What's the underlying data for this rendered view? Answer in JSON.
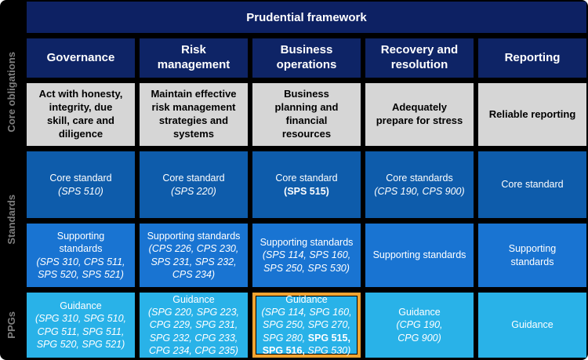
{
  "title": "Prudential framework",
  "colors": {
    "background": "#000000",
    "banner_navy": "#0d2163",
    "column_header_navy": "#0e2466",
    "core_obligation_gray": "#d6d6d6",
    "core_standard_blue": "#0e5cab",
    "supporting_standard_blue": "#1974d2",
    "guidance_cyan": "#29b2e8",
    "highlight_orange": "#f0a432",
    "rail_label_gray": "#7f7f7f"
  },
  "row_groups": {
    "core_obligations": "Core obligations",
    "standards": "Standards",
    "ppgs": "PPGs"
  },
  "columns": [
    {
      "lines": [
        "Governance"
      ]
    },
    {
      "lines": [
        "Risk",
        "management"
      ]
    },
    {
      "lines": [
        "Business",
        "operations"
      ]
    },
    {
      "lines": [
        "Recovery and",
        "resolution"
      ]
    },
    {
      "lines": [
        "Reporting"
      ]
    }
  ],
  "core_obligations": [
    {
      "lines": [
        "Act with honesty,",
        "integrity, due",
        "skill, care and",
        "diligence"
      ]
    },
    {
      "lines": [
        "Maintain effective",
        "risk management",
        "strategies and",
        "systems"
      ]
    },
    {
      "lines": [
        "Business",
        "planning and",
        "financial",
        "resources"
      ]
    },
    {
      "lines": [
        "Adequately",
        "prepare for stress"
      ]
    },
    {
      "lines": [
        "Reliable reporting"
      ]
    }
  ],
  "core_standards": [
    {
      "title": "Core standard",
      "refs": "(SPS 510)"
    },
    {
      "title": "Core standard",
      "refs": "(SPS 220)"
    },
    {
      "title": "Core standard",
      "refs": "(SPS 515)"
    },
    {
      "title": "Core standards",
      "refs": "(CPS 190, CPS 900)"
    },
    {
      "title": "Core standard"
    }
  ],
  "supporting_standards": [
    {
      "title_lines": [
        "Supporting",
        "standards"
      ],
      "refs_lines": [
        "(SPS 310, CPS 511,",
        "SPS 520, SPS 521)"
      ]
    },
    {
      "title_lines": [
        "Supporting standards"
      ],
      "refs_lines": [
        "(CPS 226, CPS 230,",
        "SPS 231, SPS 232,",
        "CPS 234)"
      ]
    },
    {
      "title_lines": [
        "Supporting standards"
      ],
      "refs_lines": [
        "(SPS 114, SPS 160,",
        "SPS 250, SPS 530)"
      ]
    },
    {
      "title_lines": [
        "Supporting standards"
      ]
    },
    {
      "title_lines": [
        "Supporting",
        "standards"
      ]
    }
  ],
  "guidance": [
    {
      "title": "Guidance",
      "refs_lines": [
        "(SPG 310, SPG 510,",
        "CPG 511, SPG 511,",
        "SPG 520, SPG 521)"
      ]
    },
    {
      "title": "Guidance",
      "refs_lines": [
        "(SPG 220, SPG 223,",
        "CPG 229, SPG 231,",
        "SPG 232, CPG 233,",
        "CPG 234, CPG 235)"
      ]
    },
    {
      "title": "Guidance",
      "line1": "(SPG 114, SPG 160,",
      "line2": "SPG 250, SPG 270,",
      "line3_italic": "SPG 280, ",
      "line3_bold": "SPG 515,",
      "line4_bold": "SPG 516,",
      "line4_italic": " SPG 530)",
      "highlighted": "true"
    },
    {
      "title": "Guidance",
      "refs_lines": [
        "(CPG 190,",
        "CPG 900)"
      ]
    },
    {
      "title": "Guidance"
    }
  ]
}
